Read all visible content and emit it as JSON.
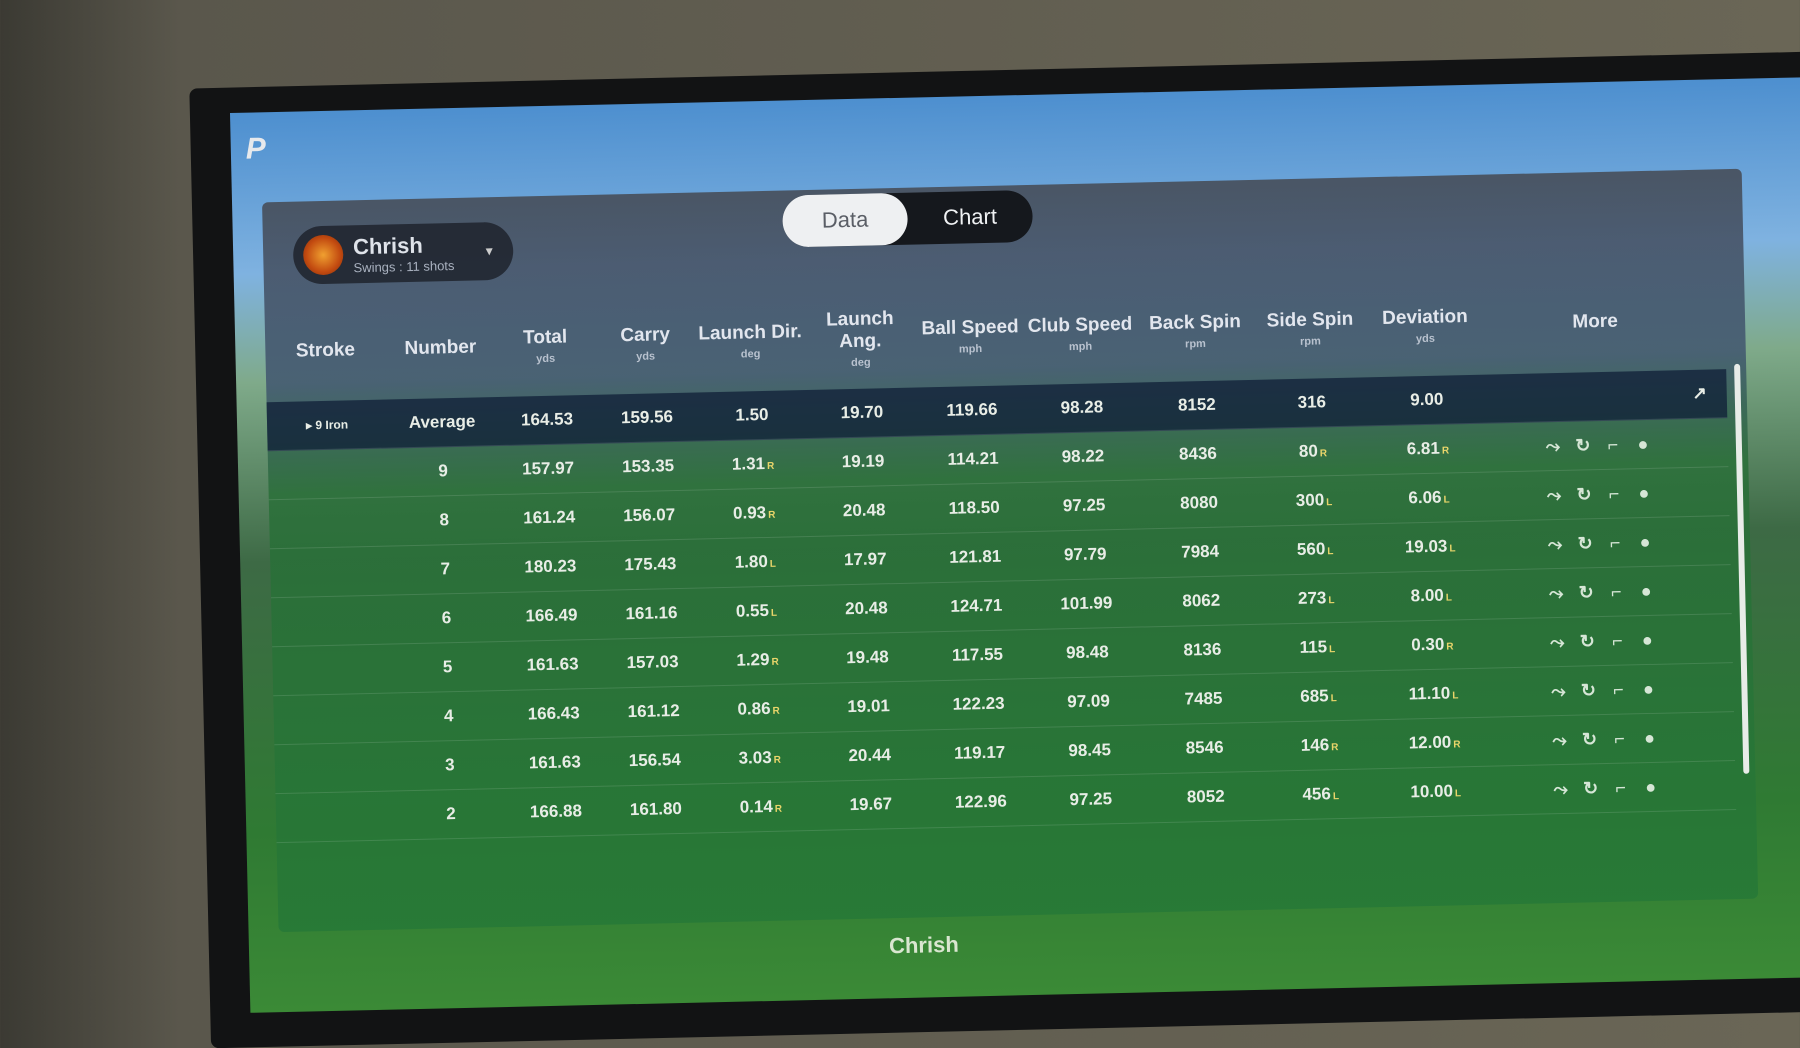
{
  "app": {
    "logo": "P"
  },
  "profile": {
    "name": "Chrish",
    "subtitle": "Swings : 11 shots"
  },
  "tabs": [
    {
      "label": "Data",
      "active": true
    },
    {
      "label": "Chart",
      "active": false
    }
  ],
  "columns": [
    {
      "label": "Stroke",
      "unit": ""
    },
    {
      "label": "Number",
      "unit": ""
    },
    {
      "label": "Total",
      "unit": "yds"
    },
    {
      "label": "Carry",
      "unit": "yds"
    },
    {
      "label": "Launch Dir.",
      "unit": "deg"
    },
    {
      "label": "Launch Ang.",
      "unit": "deg"
    },
    {
      "label": "Ball Speed",
      "unit": "mph"
    },
    {
      "label": "Club Speed",
      "unit": "mph"
    },
    {
      "label": "Back Spin",
      "unit": "rpm"
    },
    {
      "label": "Side Spin",
      "unit": "rpm"
    },
    {
      "label": "Deviation",
      "unit": "yds"
    },
    {
      "label": "More",
      "unit": ""
    }
  ],
  "average": {
    "club": "9 Iron",
    "number": "Average",
    "total": "164.53",
    "carry": "159.56",
    "launch_dir": "1.50",
    "launch_ang": "19.70",
    "ball_speed": "119.66",
    "club_speed": "98.28",
    "back_spin": "8152",
    "side_spin": "316",
    "deviation": "9.00"
  },
  "rows": [
    {
      "number": "9",
      "total": "157.97",
      "carry": "153.35",
      "launch_dir": "1.31",
      "launch_dir_side": "R",
      "launch_ang": "19.19",
      "ball_speed": "114.21",
      "club_speed": "98.22",
      "back_spin": "8436",
      "side_spin": "80",
      "side_spin_side": "R",
      "deviation": "6.81",
      "deviation_side": "R"
    },
    {
      "number": "8",
      "total": "161.24",
      "carry": "156.07",
      "launch_dir": "0.93",
      "launch_dir_side": "R",
      "launch_ang": "20.48",
      "ball_speed": "118.50",
      "club_speed": "97.25",
      "back_spin": "8080",
      "side_spin": "300",
      "side_spin_side": "L",
      "deviation": "6.06",
      "deviation_side": "L"
    },
    {
      "number": "7",
      "total": "180.23",
      "carry": "175.43",
      "launch_dir": "1.80",
      "launch_dir_side": "L",
      "launch_ang": "17.97",
      "ball_speed": "121.81",
      "club_speed": "97.79",
      "back_spin": "7984",
      "side_spin": "560",
      "side_spin_side": "L",
      "deviation": "19.03",
      "deviation_side": "L"
    },
    {
      "number": "6",
      "total": "166.49",
      "carry": "161.16",
      "launch_dir": "0.55",
      "launch_dir_side": "L",
      "launch_ang": "20.48",
      "ball_speed": "124.71",
      "club_speed": "101.99",
      "back_spin": "8062",
      "side_spin": "273",
      "side_spin_side": "L",
      "deviation": "8.00",
      "deviation_side": "L"
    },
    {
      "number": "5",
      "total": "161.63",
      "carry": "157.03",
      "launch_dir": "1.29",
      "launch_dir_side": "R",
      "launch_ang": "19.48",
      "ball_speed": "117.55",
      "club_speed": "98.48",
      "back_spin": "8136",
      "side_spin": "115",
      "side_spin_side": "L",
      "deviation": "0.30",
      "deviation_side": "R"
    },
    {
      "number": "4",
      "total": "166.43",
      "carry": "161.12",
      "launch_dir": "0.86",
      "launch_dir_side": "R",
      "launch_ang": "19.01",
      "ball_speed": "122.23",
      "club_speed": "97.09",
      "back_spin": "7485",
      "side_spin": "685",
      "side_spin_side": "L",
      "deviation": "11.10",
      "deviation_side": "L"
    },
    {
      "number": "3",
      "total": "161.63",
      "carry": "156.54",
      "launch_dir": "3.03",
      "launch_dir_side": "R",
      "launch_ang": "20.44",
      "ball_speed": "119.17",
      "club_speed": "98.45",
      "back_spin": "8546",
      "side_spin": "146",
      "side_spin_side": "R",
      "deviation": "12.00",
      "deviation_side": "R"
    },
    {
      "number": "2",
      "total": "166.88",
      "carry": "161.80",
      "launch_dir": "0.14",
      "launch_dir_side": "R",
      "launch_ang": "19.67",
      "ball_speed": "122.96",
      "club_speed": "97.25",
      "back_spin": "8052",
      "side_spin": "456",
      "side_spin_side": "L",
      "deviation": "10.00",
      "deviation_side": "L"
    }
  ],
  "row_icons": [
    "trajectory-icon",
    "replay-icon",
    "club-icon",
    "ball-icon"
  ],
  "footer": {
    "player": "Chrish"
  },
  "colors": {
    "panel_green": "#267837",
    "header_blue": "#3c506e",
    "direction_marker": "#e9d56a"
  }
}
